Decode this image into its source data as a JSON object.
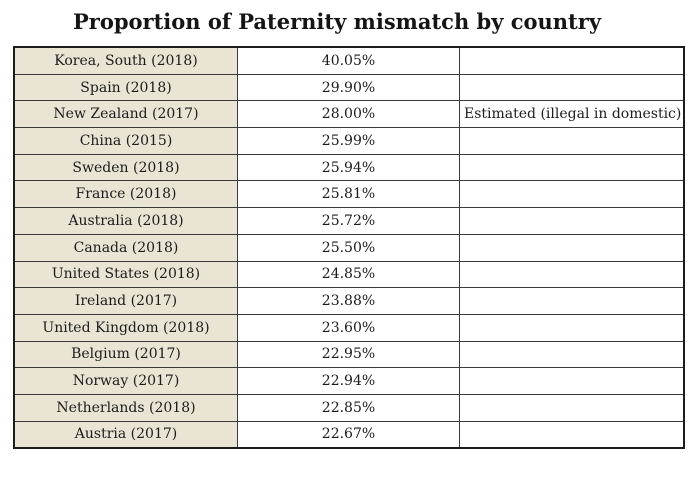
{
  "title": "Proportion of Paternity mismatch by country",
  "colors": {
    "country_column_bg": "#e9e4d3",
    "value_column_bg": "#ffffff",
    "border": "#3a3a3a",
    "outer_border": "#1c1c1c",
    "text": "#1c1c1c",
    "page_background": "#ffffff"
  },
  "chart_data": {
    "type": "table",
    "title": "Proportion of Paternity mismatch by country",
    "legend_position": "none",
    "grid": "full table borders",
    "rows": [
      {
        "country": "Korea, South (2018)",
        "value": "40.05%",
        "note": ""
      },
      {
        "country": "Spain (2018)",
        "value": "29.90%",
        "note": ""
      },
      {
        "country": "New Zealand (2017)",
        "value": "28.00%",
        "note": "Estimated (illegal in domestic)"
      },
      {
        "country": "China (2015)",
        "value": "25.99%",
        "note": ""
      },
      {
        "country": "Sweden (2018)",
        "value": "25.94%",
        "note": ""
      },
      {
        "country": "France (2018)",
        "value": "25.81%",
        "note": ""
      },
      {
        "country": "Australia (2018)",
        "value": "25.72%",
        "note": ""
      },
      {
        "country": "Canada (2018)",
        "value": "25.50%",
        "note": ""
      },
      {
        "country": "United States (2018)",
        "value": "24.85%",
        "note": ""
      },
      {
        "country": "Ireland (2017)",
        "value": "23.88%",
        "note": ""
      },
      {
        "country": "United Kingdom (2018)",
        "value": "23.60%",
        "note": ""
      },
      {
        "country": "Belgium (2017)",
        "value": "22.95%",
        "note": ""
      },
      {
        "country": "Norway (2017)",
        "value": "22.94%",
        "note": ""
      },
      {
        "country": "Netherlands (2018)",
        "value": "22.85%",
        "note": ""
      },
      {
        "country": "Austria (2017)",
        "value": "22.67%",
        "note": ""
      }
    ]
  }
}
